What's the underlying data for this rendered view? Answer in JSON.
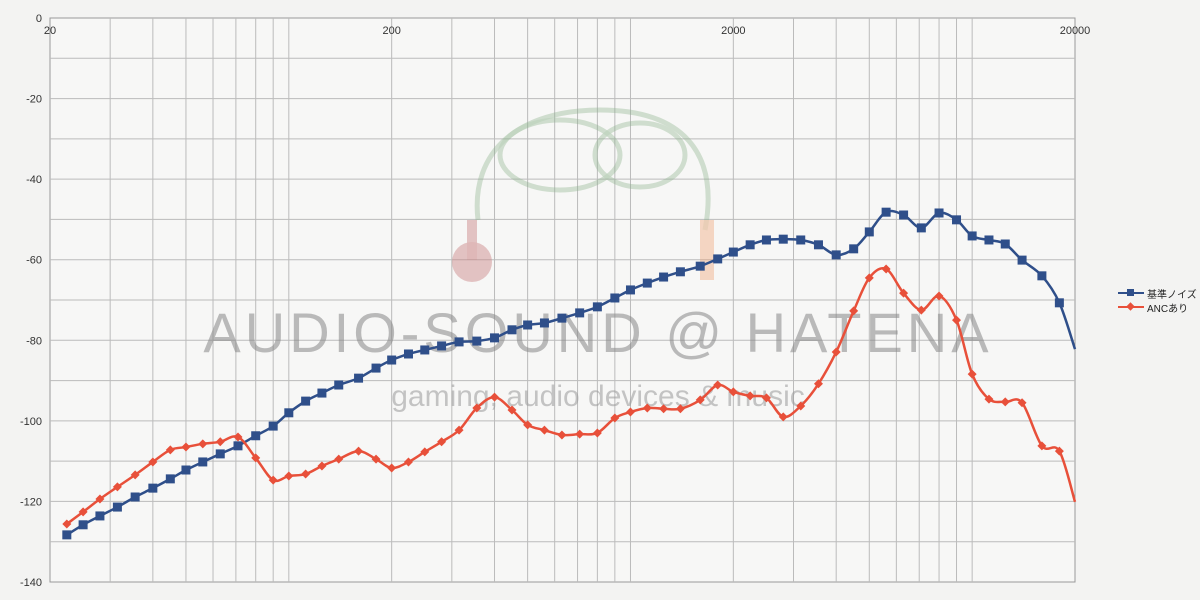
{
  "chart_data": {
    "type": "line",
    "title": "",
    "xlabel": "",
    "ylabel": "",
    "x_scale": "log",
    "xlim": [
      20,
      20000
    ],
    "ylim": [
      -140,
      0
    ],
    "x_ticks": [
      "20",
      "200",
      "2000",
      "20000"
    ],
    "y_ticks": [
      "0",
      "-20",
      "-40",
      "-60",
      "-80",
      "-100",
      "-120",
      "-140"
    ],
    "grid": true,
    "legend_position": "right",
    "x": [
      22.4,
      25,
      28,
      31.5,
      35.5,
      40,
      45,
      50,
      56,
      63,
      71,
      80,
      90,
      100,
      112,
      125,
      140,
      160,
      180,
      200,
      224,
      250,
      280,
      315,
      355,
      400,
      450,
      500,
      560,
      630,
      710,
      800,
      900,
      1000,
      1120,
      1250,
      1400,
      1600,
      1800,
      2000,
      2240,
      2500,
      2800,
      3150,
      3550,
      4000,
      4500,
      5000,
      5600,
      6300,
      7100,
      8000,
      9000,
      10000,
      11200,
      12500,
      14000,
      16000,
      18000,
      20000
    ],
    "series": [
      {
        "name": "基準ノイズ",
        "color": "#2f4f8a",
        "marker": "square",
        "values": [
          -128.3,
          -125.8,
          -123.6,
          -121.4,
          -118.9,
          -116.7,
          -114.4,
          -112.2,
          -110.2,
          -108.2,
          -106.2,
          -103.7,
          -101.3,
          -98.0,
          -95.1,
          -93.1,
          -91.1,
          -89.4,
          -86.9,
          -84.9,
          -83.4,
          -82.4,
          -81.4,
          -80.4,
          -80.2,
          -79.4,
          -77.4,
          -76.2,
          -75.7,
          -74.5,
          -73.2,
          -71.7,
          -69.5,
          -67.5,
          -65.8,
          -64.3,
          -63.0,
          -61.6,
          -59.8,
          -58.1,
          -56.3,
          -55.1,
          -54.9,
          -55.1,
          -56.3,
          -58.8,
          -57.3,
          -53.1,
          -48.2,
          -48.9,
          -52.1,
          -48.4,
          -50.1,
          -54.1,
          -55.1,
          -56.1,
          -60.1,
          -64.0,
          -70.7,
          -82.2
        ]
      },
      {
        "name": "ANCあり",
        "color": "#e8503a",
        "marker": "diamond",
        "values": [
          -125.6,
          -122.6,
          -119.4,
          -116.4,
          -113.4,
          -110.2,
          -107.2,
          -106.5,
          -105.7,
          -105.2,
          -104.0,
          -109.2,
          -114.7,
          -113.7,
          -113.2,
          -111.2,
          -109.5,
          -107.5,
          -109.5,
          -111.7,
          -110.2,
          -107.7,
          -105.2,
          -102.3,
          -96.8,
          -94.1,
          -97.3,
          -101.0,
          -102.3,
          -103.5,
          -103.3,
          -103.0,
          -99.3,
          -97.8,
          -96.8,
          -97.0,
          -97.0,
          -94.8,
          -91.1,
          -92.8,
          -93.8,
          -94.3,
          -99.0,
          -96.3,
          -90.8,
          -82.9,
          -72.7,
          -64.5,
          -62.3,
          -68.3,
          -72.5,
          -69.0,
          -75.0,
          -88.4,
          -94.6,
          -95.3,
          -95.5,
          -106.2,
          -107.5,
          -120.1
        ]
      }
    ]
  },
  "watermark": {
    "title": "AUDIO-SOUND @ HATENA",
    "subtitle": "gaming, audio devices & music"
  }
}
